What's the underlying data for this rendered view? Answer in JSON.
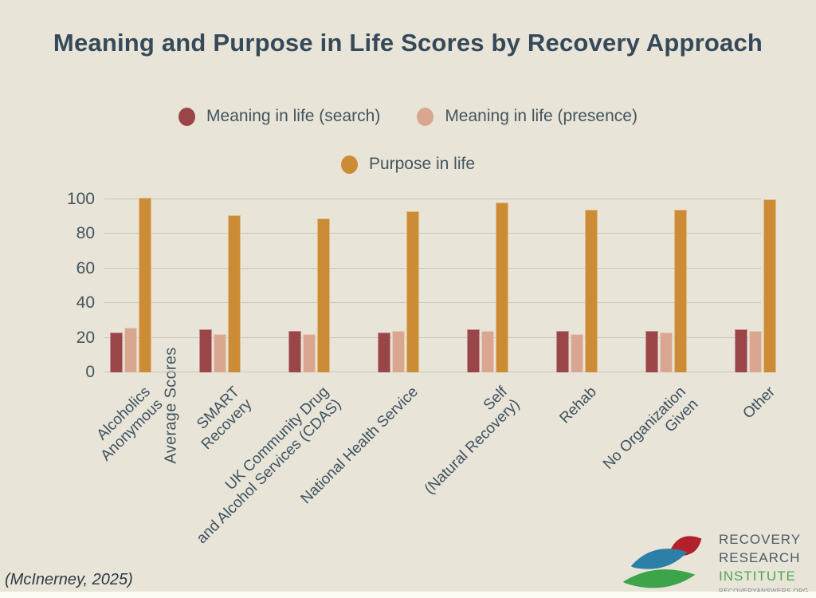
{
  "title": "Meaning and Purpose in Life Scores by Recovery Approach",
  "citation": "(McInerney, 2025)",
  "colors": {
    "background": "#e8e4d7",
    "title_text": "#36495a",
    "axis_text": "#44545f",
    "gridline": "#cac8bc",
    "search": "#9a4648",
    "presence": "#d9a78f",
    "purpose": "#cc8c36"
  },
  "legend": {
    "items": [
      {
        "label": "Meaning in life (search)",
        "color": "#9a4648",
        "marker": "circle-icon"
      },
      {
        "label": "Meaning in life (presence)",
        "color": "#d9a78f",
        "marker": "circle-icon"
      },
      {
        "label": "Purpose in life",
        "color": "#cc8c36",
        "marker": "circle-icon"
      }
    ]
  },
  "chart_data": {
    "type": "bar",
    "title": "Meaning and Purpose in Life Scores by Recovery Approach",
    "xlabel": "",
    "ylabel": "Average Scores",
    "ylim": [
      0,
      100
    ],
    "y_ticks": [
      0,
      20,
      40,
      60,
      80,
      100
    ],
    "grid": true,
    "legend_position": "top-center",
    "categories": [
      "Alcoholics Anonymous",
      "SMART Recovery",
      "UK Community Drug and Alcohol Services (CDAS)",
      "National Health Service",
      "Self (Natural Recovery)",
      "Rehab",
      "No Organization Given",
      "Other"
    ],
    "categories_display": [
      [
        "Alcoholics",
        "Anonymous"
      ],
      [
        "SMART",
        "Recovery"
      ],
      [
        "UK Community Drug",
        "and Alcohol Services (CDAS)"
      ],
      [
        "National Health Service"
      ],
      [
        "Self",
        "(Natural Recovery)"
      ],
      [
        "Rehab"
      ],
      [
        "No Organization",
        "Given"
      ],
      [
        "Other"
      ]
    ],
    "series": [
      {
        "name": "Meaning in life (search)",
        "color": "#9a4648",
        "values": [
          23,
          25,
          24,
          23,
          25,
          24,
          24,
          25
        ]
      },
      {
        "name": "Meaning in life (presence)",
        "color": "#d9a78f",
        "values": [
          26,
          22,
          22,
          24,
          24,
          22,
          23,
          24
        ]
      },
      {
        "name": "Purpose in life",
        "color": "#cc8c36",
        "values": [
          101,
          91,
          89,
          93,
          98,
          94,
          94,
          100
        ]
      }
    ]
  },
  "logo": {
    "line1": "RECOVERY",
    "line2": "RESEARCH",
    "line3": "INSTITUTE",
    "url": "RECOVERYANSWERS.ORG",
    "leaf_teal": "#2c7fa6",
    "leaf_red": "#b2202a",
    "leaf_green": "#3da44a"
  }
}
